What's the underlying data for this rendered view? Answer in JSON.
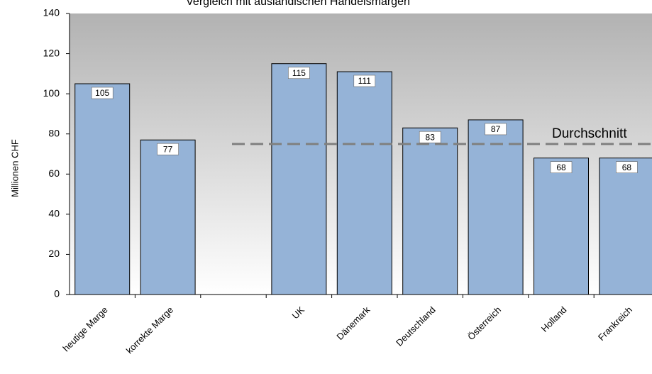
{
  "chart_data": {
    "type": "bar",
    "title": "Vergleich mit ausländischen Handelsmargen",
    "y_label": "Millionen CHF",
    "categories": [
      "heutige Marge",
      "korrekte Marge",
      null,
      "UK",
      "Dänemark",
      "Deutschland",
      "Österreich",
      "Holland",
      "Frankreich"
    ],
    "values": [
      105,
      77,
      null,
      115,
      111,
      83,
      87,
      68,
      68
    ],
    "color": "#95b3d7",
    "ylim": [
      0,
      140
    ],
    "yticks": [
      0,
      20,
      40,
      60,
      80,
      100,
      120,
      140
    ],
    "reference_line": {
      "label": "Durchschnitt",
      "value": 75,
      "color": "#808080"
    }
  }
}
